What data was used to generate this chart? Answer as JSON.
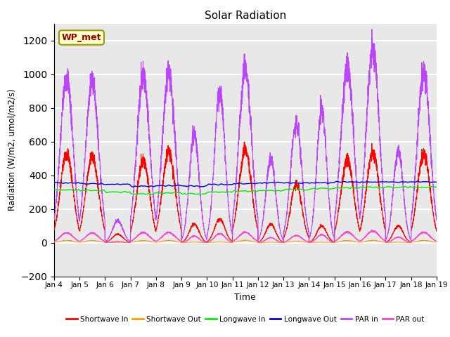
{
  "title": "Solar Radiation",
  "xlabel": "Time",
  "ylabel": "Radiation (W/m2, umol/m2/s)",
  "ylim": [
    -200,
    1300
  ],
  "yticks": [
    -200,
    0,
    200,
    400,
    600,
    800,
    1000,
    1200
  ],
  "n_days": 15,
  "points_per_day": 288,
  "colors": {
    "shortwave_in": "#ff0000",
    "shortwave_out": "#ff9900",
    "longwave_in": "#00ee00",
    "longwave_out": "#0000dd",
    "par_in": "#bb44ff",
    "par_out": "#ff44cc"
  },
  "legend_labels": [
    "Shortwave In",
    "Shortwave Out",
    "Longwave In",
    "Longwave Out",
    "PAR in",
    "PAR out"
  ],
  "annotation_text": "WP_met",
  "background_color": "#e8e8e8",
  "grid_color": "#ffffff",
  "x_tick_labels": [
    "Jan 4",
    "Jan 5",
    "Jan 6",
    "Jan 7",
    "Jan 8",
    "Jan 9",
    "Jan 10",
    "Jan 11",
    "Jan 12",
    "Jan 13",
    "Jan 14",
    "Jan 15",
    "Jan 16",
    "Jan 17",
    "Jan 18",
    "Jan 19"
  ],
  "par_in_peaks": [
    980,
    960,
    130,
    1000,
    1010,
    650,
    900,
    1030,
    500,
    710,
    800,
    1040,
    1160,
    550,
    1020
  ],
  "shortwave_in_peaks": [
    530,
    510,
    50,
    490,
    540,
    110,
    140,
    550,
    110,
    350,
    100,
    490,
    540,
    100,
    530
  ],
  "lw_in_values": [
    315,
    310,
    300,
    290,
    295,
    290,
    300,
    305,
    310,
    315,
    320,
    325,
    330,
    330,
    330
  ],
  "lw_out_values": [
    355,
    350,
    345,
    335,
    340,
    335,
    345,
    350,
    355,
    355,
    355,
    360,
    360,
    360,
    360
  ],
  "day_sharpness": [
    8,
    8,
    12,
    8,
    8,
    14,
    12,
    8,
    14,
    10,
    14,
    8,
    8,
    14,
    8
  ]
}
